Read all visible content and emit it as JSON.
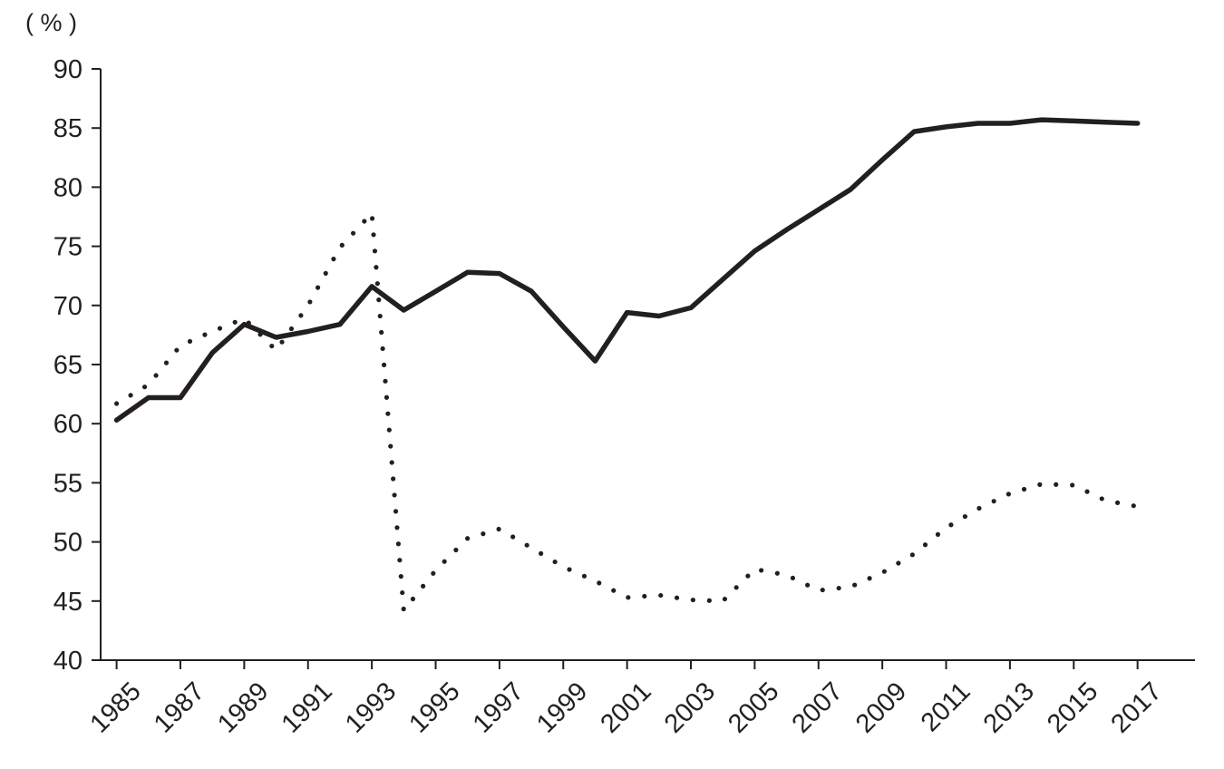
{
  "chart_data": {
    "type": "line",
    "unit_label": "( % )",
    "ylim": [
      40,
      90
    ],
    "y_ticks": [
      "90",
      "85",
      "80",
      "75",
      "70",
      "65",
      "60",
      "55",
      "50",
      "45",
      "40"
    ],
    "x_range": [
      1984.5,
      2018.8
    ],
    "x_ticks": [
      "1985",
      "1987",
      "1989",
      "1991",
      "1993",
      "1995",
      "1997",
      "1999",
      "2001",
      "2003",
      "2005",
      "2007",
      "2009",
      "2011",
      "2013",
      "2015",
      "2017"
    ],
    "grid": false,
    "legend": "none",
    "series": [
      {
        "style": "solid",
        "color": "#231f20",
        "points": [
          [
            1985,
            60.3
          ],
          [
            1986,
            62.2
          ],
          [
            1987,
            62.2
          ],
          [
            1988,
            66.0
          ],
          [
            1989,
            68.4
          ],
          [
            1990,
            67.3
          ],
          [
            1991,
            67.8
          ],
          [
            1992,
            68.4
          ],
          [
            1993,
            71.6
          ],
          [
            1994,
            69.6
          ],
          [
            1995,
            71.2
          ],
          [
            1996,
            72.8
          ],
          [
            1997,
            72.7
          ],
          [
            1998,
            71.2
          ],
          [
            1999,
            68.2
          ],
          [
            2000,
            65.3
          ],
          [
            2001,
            69.4
          ],
          [
            2002,
            69.1
          ],
          [
            2003,
            69.8
          ],
          [
            2004,
            72.2
          ],
          [
            2005,
            74.6
          ],
          [
            2006,
            76.4
          ],
          [
            2007,
            78.1
          ],
          [
            2008,
            79.8
          ],
          [
            2009,
            82.3
          ],
          [
            2010,
            84.7
          ],
          [
            2011,
            85.1
          ],
          [
            2012,
            85.4
          ],
          [
            2013,
            85.4
          ],
          [
            2014,
            85.7
          ],
          [
            2015,
            85.6
          ],
          [
            2016,
            85.5
          ],
          [
            2017,
            85.4
          ]
        ]
      },
      {
        "style": "dotted",
        "color": "#231f20",
        "points": [
          [
            1985,
            61.7
          ],
          [
            1986,
            63.3
          ],
          [
            1987,
            66.6
          ],
          [
            1988,
            67.8
          ],
          [
            1989,
            68.9
          ],
          [
            1990,
            66.2
          ],
          [
            1991,
            70.0
          ],
          [
            1992,
            74.9
          ],
          [
            1993,
            77.8
          ],
          [
            1994,
            44.2
          ],
          [
            1995,
            47.6
          ],
          [
            1996,
            50.3
          ],
          [
            1997,
            51.1
          ],
          [
            1998,
            49.5
          ],
          [
            1999,
            47.9
          ],
          [
            2000,
            46.7
          ],
          [
            2001,
            45.3
          ],
          [
            2002,
            45.5
          ],
          [
            2003,
            45.1
          ],
          [
            2004,
            45.0
          ],
          [
            2005,
            47.7
          ],
          [
            2006,
            47.2
          ],
          [
            2007,
            45.9
          ],
          [
            2008,
            46.2
          ],
          [
            2009,
            47.4
          ],
          [
            2010,
            49.0
          ],
          [
            2011,
            51.2
          ],
          [
            2012,
            52.8
          ],
          [
            2013,
            54.1
          ],
          [
            2014,
            54.9
          ],
          [
            2015,
            54.8
          ],
          [
            2016,
            53.5
          ],
          [
            2017,
            53.0
          ]
        ]
      }
    ]
  }
}
